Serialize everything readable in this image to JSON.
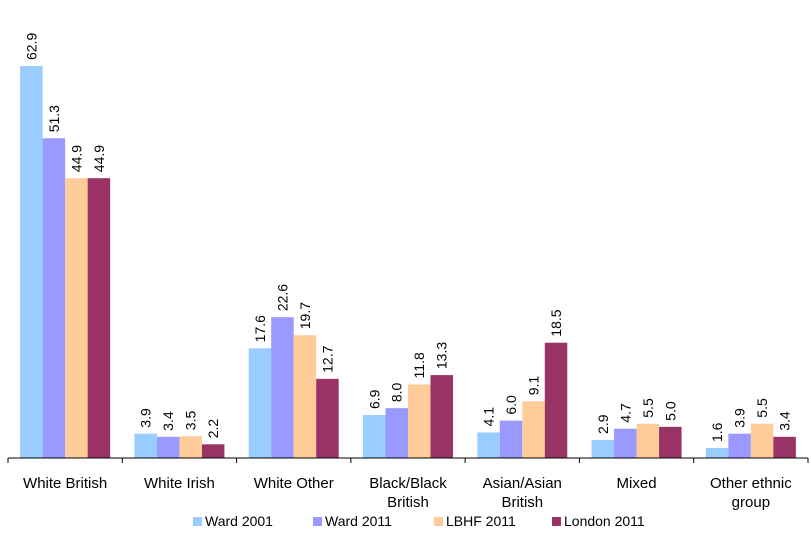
{
  "chart_data": {
    "type": "bar",
    "title": "",
    "xlabel": "",
    "ylabel": "",
    "ylim": [
      0,
      70
    ],
    "grid": false,
    "legend_position": "bottom",
    "categories": [
      [
        "White British"
      ],
      [
        "White Irish"
      ],
      [
        "White Other"
      ],
      [
        "Black/Black",
        "British"
      ],
      [
        "Asian/Asian",
        "British"
      ],
      [
        "Mixed"
      ],
      [
        "Other ethnic",
        "group"
      ]
    ],
    "series": [
      {
        "name": "Ward 2001",
        "color": "#99ccff",
        "values": [
          62.9,
          3.9,
          17.6,
          6.9,
          4.1,
          2.9,
          1.6
        ]
      },
      {
        "name": "Ward 2011",
        "color": "#9999ff",
        "values": [
          51.3,
          3.4,
          22.6,
          8.0,
          6.0,
          4.7,
          3.9
        ]
      },
      {
        "name": "LBHF 2011",
        "color": "#ffcc99",
        "values": [
          44.9,
          3.5,
          19.7,
          11.8,
          9.1,
          5.5,
          5.5
        ]
      },
      {
        "name": "London 2011",
        "color": "#993366",
        "values": [
          44.9,
          2.2,
          12.7,
          13.3,
          18.5,
          5.0,
          3.4
        ]
      }
    ]
  }
}
